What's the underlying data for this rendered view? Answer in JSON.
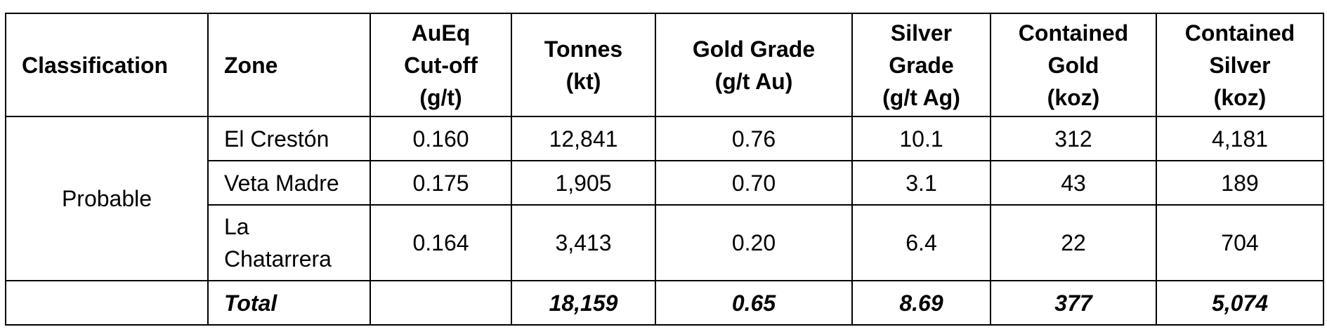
{
  "table": {
    "headers": [
      "Classification",
      "Zone",
      "AuEq\nCut-off\n(g/t)",
      "Tonnes\n(kt)",
      "Gold Grade\n(g/t Au)",
      "Silver\nGrade\n(g/t Ag)",
      "Contained\nGold\n(koz)",
      "Contained\nSilver\n(koz)"
    ],
    "classification": "Probable",
    "rows": [
      {
        "zone": "El Crestón",
        "cutoff": "0.160",
        "tonnes": "12,841",
        "gold_grade": "0.76",
        "silver_grade": "10.1",
        "contained_gold": "312",
        "contained_silver": "4,181"
      },
      {
        "zone": "Veta Madre",
        "cutoff": "0.175",
        "tonnes": "1,905",
        "gold_grade": "0.70",
        "silver_grade": "3.1",
        "contained_gold": "43",
        "contained_silver": "189"
      },
      {
        "zone": "La\nChatarrera",
        "cutoff": "0.164",
        "tonnes": "3,413",
        "gold_grade": "0.20",
        "silver_grade": "6.4",
        "contained_gold": "22",
        "contained_silver": "704"
      }
    ],
    "total": {
      "label": "Total",
      "cutoff": "",
      "tonnes": "18,159",
      "gold_grade": "0.65",
      "silver_grade": "8.69",
      "contained_gold": "377",
      "contained_silver": "5,074"
    }
  }
}
